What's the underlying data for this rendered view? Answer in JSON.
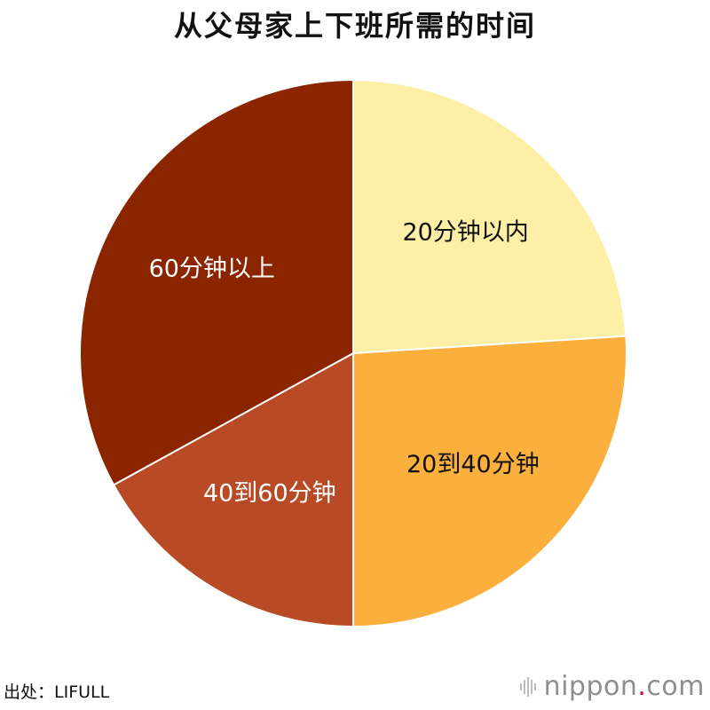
{
  "chart_data": {
    "type": "pie",
    "title": "从父母家上下班所需的时间",
    "start_angle_deg": 0,
    "direction": "clockwise",
    "slices": [
      {
        "label": "20分钟以内",
        "value": 24,
        "color": "#FEEFA7",
        "text_color": "#111111"
      },
      {
        "label": "20到40分钟",
        "value": 26,
        "color": "#FBAF3C",
        "text_color": "#111111"
      },
      {
        "label": "40到60分钟",
        "value": 17,
        "color": "#B84B26",
        "text_color": "#ffffff"
      },
      {
        "label": "60分钟以上",
        "value": 33,
        "color": "#8B2500",
        "text_color": "#ffffff"
      }
    ]
  },
  "footer": {
    "source": "出处：LIFULL",
    "brand_name": "nippon",
    "brand_dot": ".",
    "brand_tld": "com"
  }
}
